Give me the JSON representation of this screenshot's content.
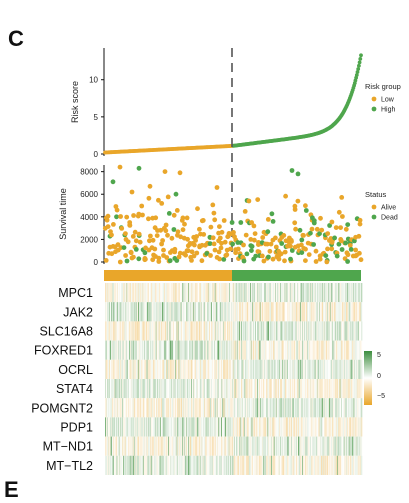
{
  "panel_label": "C",
  "next_panel_label": "E",
  "colors": {
    "low": "#E9A62A",
    "high": "#4FA64D",
    "alive": "#E9A62A",
    "dead": "#4FA64D",
    "heat_low": "#E9A62A",
    "heat_mid": "#FFFFFF",
    "heat_high": "#3E8E3E"
  },
  "chart_data": [
    {
      "type": "scatter",
      "ylabel": "Risk score",
      "ylim": [
        0,
        14
      ],
      "yticks": [
        "0",
        "5",
        "10"
      ],
      "legend": {
        "title": "Risk group",
        "items": [
          "Low",
          "High"
        ],
        "placement": "right"
      },
      "n_samples": 370,
      "cutoff_index": 185,
      "summary": {
        "low_range": [
          0.2,
          1.1
        ],
        "high_range": [
          1.1,
          13.8
        ]
      }
    },
    {
      "type": "scatter",
      "ylabel": "Survival time",
      "ylim": [
        0,
        8500
      ],
      "yticks": [
        "0",
        "2000",
        "4000",
        "6000",
        "8000"
      ],
      "legend": {
        "title": "Status",
        "items": [
          "Alive",
          "Dead"
        ],
        "placement": "right"
      },
      "summary": {
        "typical_max": 4500,
        "outliers": [
          8400,
          8300,
          8000,
          7800,
          7100,
          6600,
          6200,
          6000
        ]
      }
    },
    {
      "type": "heatmap",
      "genes": [
        "MPC1",
        "JAK2",
        "SLC16A8",
        "FOXRED1",
        "OCRL",
        "STAT4",
        "POMGNT2",
        "PDP1",
        "MT−ND1",
        "MT−TL2"
      ],
      "colorbar": {
        "ticks": [
          "5",
          "0",
          "−5"
        ],
        "range": [
          -5,
          5
        ]
      },
      "group_bar": [
        "Low",
        "High"
      ]
    }
  ]
}
